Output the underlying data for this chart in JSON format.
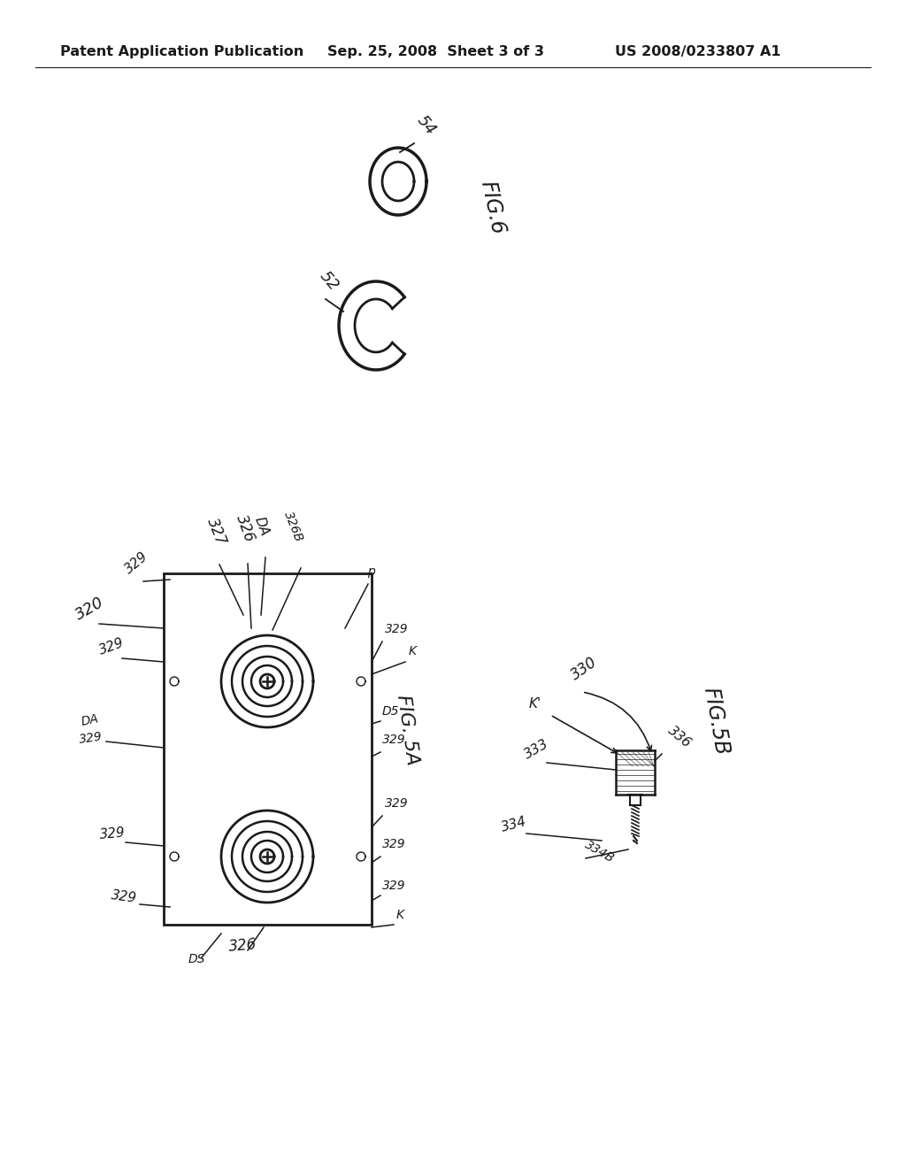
{
  "bg_color": "#ffffff",
  "line_color": "#1a1a1a",
  "header_left": "Patent Application Publication",
  "header_mid": "Sep. 25, 2008  Sheet 3 of 3",
  "header_right": "US 2008/0233807 A1",
  "header_fontsize": 11.5
}
